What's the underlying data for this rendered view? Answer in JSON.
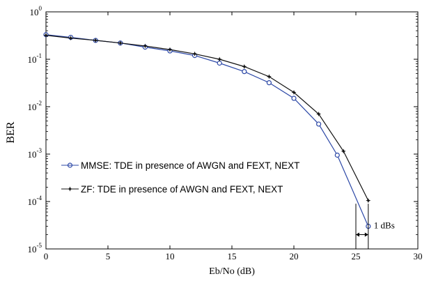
{
  "chart_data": {
    "type": "line",
    "title": "",
    "xlabel": "Eb/No (dB)",
    "ylabel": "BER",
    "xlim": [
      0,
      30
    ],
    "ylim": [
      1e-05,
      1
    ],
    "yscale": "log",
    "x_ticks": [
      0,
      5,
      10,
      15,
      20,
      25,
      30
    ],
    "y_ticks": [
      {
        "base": "10",
        "exp": "0",
        "value": 1
      },
      {
        "base": "10",
        "exp": "-1",
        "value": 0.1
      },
      {
        "base": "10",
        "exp": "-2",
        "value": 0.01
      },
      {
        "base": "10",
        "exp": "-3",
        "value": 0.001
      },
      {
        "base": "10",
        "exp": "-4",
        "value": 0.0001
      },
      {
        "base": "10",
        "exp": "-5",
        "value": 1e-05
      }
    ],
    "grid": false,
    "legend_position": "lower-left",
    "series": [
      {
        "name": "MMSE: TDE in presence of AWGN and FEXT, NEXT",
        "color": "#2b47a6",
        "marker": "circle",
        "x": [
          0,
          2,
          4,
          6,
          8,
          10,
          12,
          14,
          16,
          18,
          20,
          22,
          23.5,
          26
        ],
        "y": [
          0.33,
          0.29,
          0.25,
          0.22,
          0.18,
          0.15,
          0.12,
          0.083,
          0.055,
          0.032,
          0.015,
          0.0043,
          0.00095,
          3e-05
        ]
      },
      {
        "name": "ZF: TDE in presence of AWGN and FEXT, NEXT",
        "color": "#111111",
        "marker": "star",
        "x": [
          0,
          2,
          4,
          6,
          8,
          10,
          12,
          14,
          16,
          18,
          20,
          22,
          24,
          26
        ],
        "y": [
          0.32,
          0.28,
          0.25,
          0.22,
          0.19,
          0.16,
          0.13,
          0.1,
          0.07,
          0.043,
          0.02,
          0.007,
          0.00115,
          0.000105
        ]
      }
    ],
    "annotation": {
      "text": "1 dBs",
      "x_from": 25,
      "x_to": 26
    }
  }
}
